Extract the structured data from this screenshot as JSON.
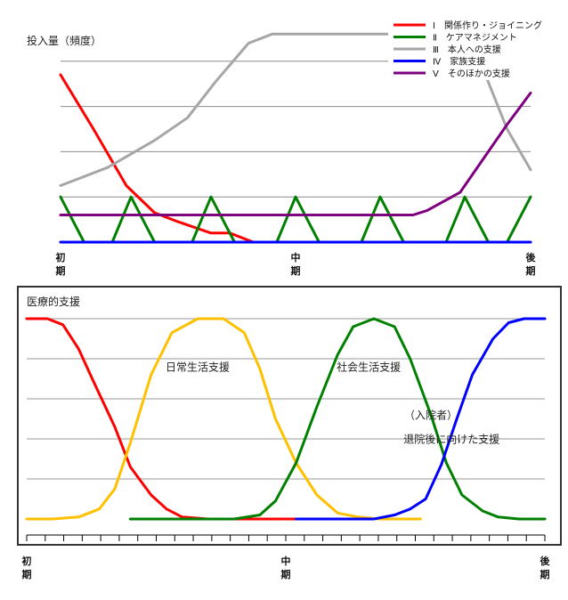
{
  "chart_data": [
    {
      "type": "line",
      "title": "",
      "ylabel": "投入量（頻度）",
      "xlabel": "",
      "x_ticks": [
        {
          "x": 0,
          "label": [
            "初",
            "期"
          ]
        },
        {
          "x": 50,
          "label": [
            "中",
            "期"
          ]
        },
        {
          "x": 100,
          "label": [
            "後",
            "期"
          ]
        }
      ],
      "xlim": [
        0,
        100
      ],
      "ylim": [
        0,
        5
      ],
      "grid": "horizontal",
      "legend_position": "top-right",
      "series": [
        {
          "name": "Ⅰ　関係作り・ジョイニング",
          "color": "#ff0000",
          "x": [
            0,
            7,
            14,
            20,
            25,
            32,
            36,
            41
          ],
          "y": [
            3.7,
            2.5,
            1.25,
            0.65,
            0.45,
            0.2,
            0.2,
            0
          ]
        },
        {
          "name": "Ⅱ　ケアマネジメント",
          "color": "#008000",
          "x": [
            0,
            5,
            11,
            15,
            20,
            28,
            32,
            37,
            46,
            50,
            55,
            64,
            68,
            73,
            82,
            86,
            91,
            95,
            100
          ],
          "y": [
            1,
            0,
            0,
            1,
            0,
            0,
            1,
            0,
            0,
            1,
            0,
            0,
            1,
            0,
            0,
            1,
            0,
            0,
            1
          ]
        },
        {
          "name": "Ⅲ　本人への支援",
          "color": "#a6a6a6",
          "x": [
            0,
            10,
            20,
            27,
            33,
            40,
            45,
            50,
            60,
            70,
            80,
            90,
            95,
            100
          ],
          "y": [
            1.25,
            1.65,
            2.25,
            2.75,
            3.55,
            4.4,
            4.6,
            4.6,
            4.6,
            4.6,
            4.6,
            3.8,
            2.5,
            1.6
          ]
        },
        {
          "name": "Ⅳ　家族支援",
          "color": "#0000ff",
          "x": [
            0,
            100
          ],
          "y": [
            0,
            0
          ]
        },
        {
          "name": "Ⅴ　そのほかの支援",
          "color": "#7f007f",
          "x": [
            0,
            20,
            40,
            60,
            75,
            78,
            85,
            90,
            95,
            100
          ],
          "y": [
            0.6,
            0.6,
            0.6,
            0.6,
            0.6,
            0.7,
            1.1,
            1.85,
            2.6,
            3.3
          ]
        }
      ]
    },
    {
      "type": "line",
      "title": "",
      "ylabel": "医療的支援",
      "xlabel": "",
      "x_ticks": [
        {
          "x": 0,
          "label": [
            "初",
            "期"
          ]
        },
        {
          "x": 50,
          "label": [
            "中",
            "期"
          ]
        },
        {
          "x": 100,
          "label": [
            "後",
            "期"
          ]
        }
      ],
      "xlim": [
        0,
        100
      ],
      "ylim": [
        0,
        100
      ],
      "grid": "horizontal",
      "legend_position": "none",
      "annotations": [
        {
          "text": "日常生活支援",
          "x": 33,
          "y": 74
        },
        {
          "text": "社会生活支援",
          "x": 66,
          "y": 74
        },
        {
          "text": "（入院者）",
          "x": 78,
          "y": 50
        },
        {
          "text": "退院後に向けた支援",
          "x": 82,
          "y": 38
        }
      ],
      "series": [
        {
          "color": "#ff0000",
          "x": [
            0,
            4,
            7,
            10,
            13,
            17,
            20,
            24,
            27,
            30,
            35,
            40,
            50,
            60,
            65
          ],
          "y": [
            100,
            100,
            97,
            85,
            68,
            46,
            26,
            12,
            5,
            1,
            0,
            0,
            0,
            0,
            0
          ]
        },
        {
          "color": "#ffc000",
          "x": [
            0,
            5,
            10,
            14,
            17,
            20,
            24,
            28,
            33,
            38,
            42,
            45,
            48,
            52,
            56,
            60,
            64,
            68,
            72,
            76
          ],
          "y": [
            0,
            0,
            1,
            5,
            15,
            38,
            72,
            93,
            100,
            100,
            93,
            75,
            50,
            28,
            12,
            3,
            1,
            0,
            0,
            0
          ]
        },
        {
          "color": "#008000",
          "x": [
            20,
            30,
            40,
            45,
            48,
            52,
            56,
            60,
            63,
            67,
            71,
            74,
            78,
            81,
            84,
            88,
            91,
            95,
            100
          ],
          "y": [
            0,
            0,
            0,
            2,
            9,
            28,
            56,
            82,
            96,
            100,
            96,
            80,
            52,
            28,
            12,
            4,
            1,
            0,
            0
          ]
        },
        {
          "color": "#0000ff",
          "x": [
            52,
            60,
            67,
            71,
            74,
            77,
            80,
            83,
            86,
            90,
            93,
            96,
            100
          ],
          "y": [
            0,
            0,
            0,
            2,
            5,
            10,
            27,
            50,
            72,
            90,
            98,
            100,
            100
          ]
        }
      ]
    }
  ]
}
